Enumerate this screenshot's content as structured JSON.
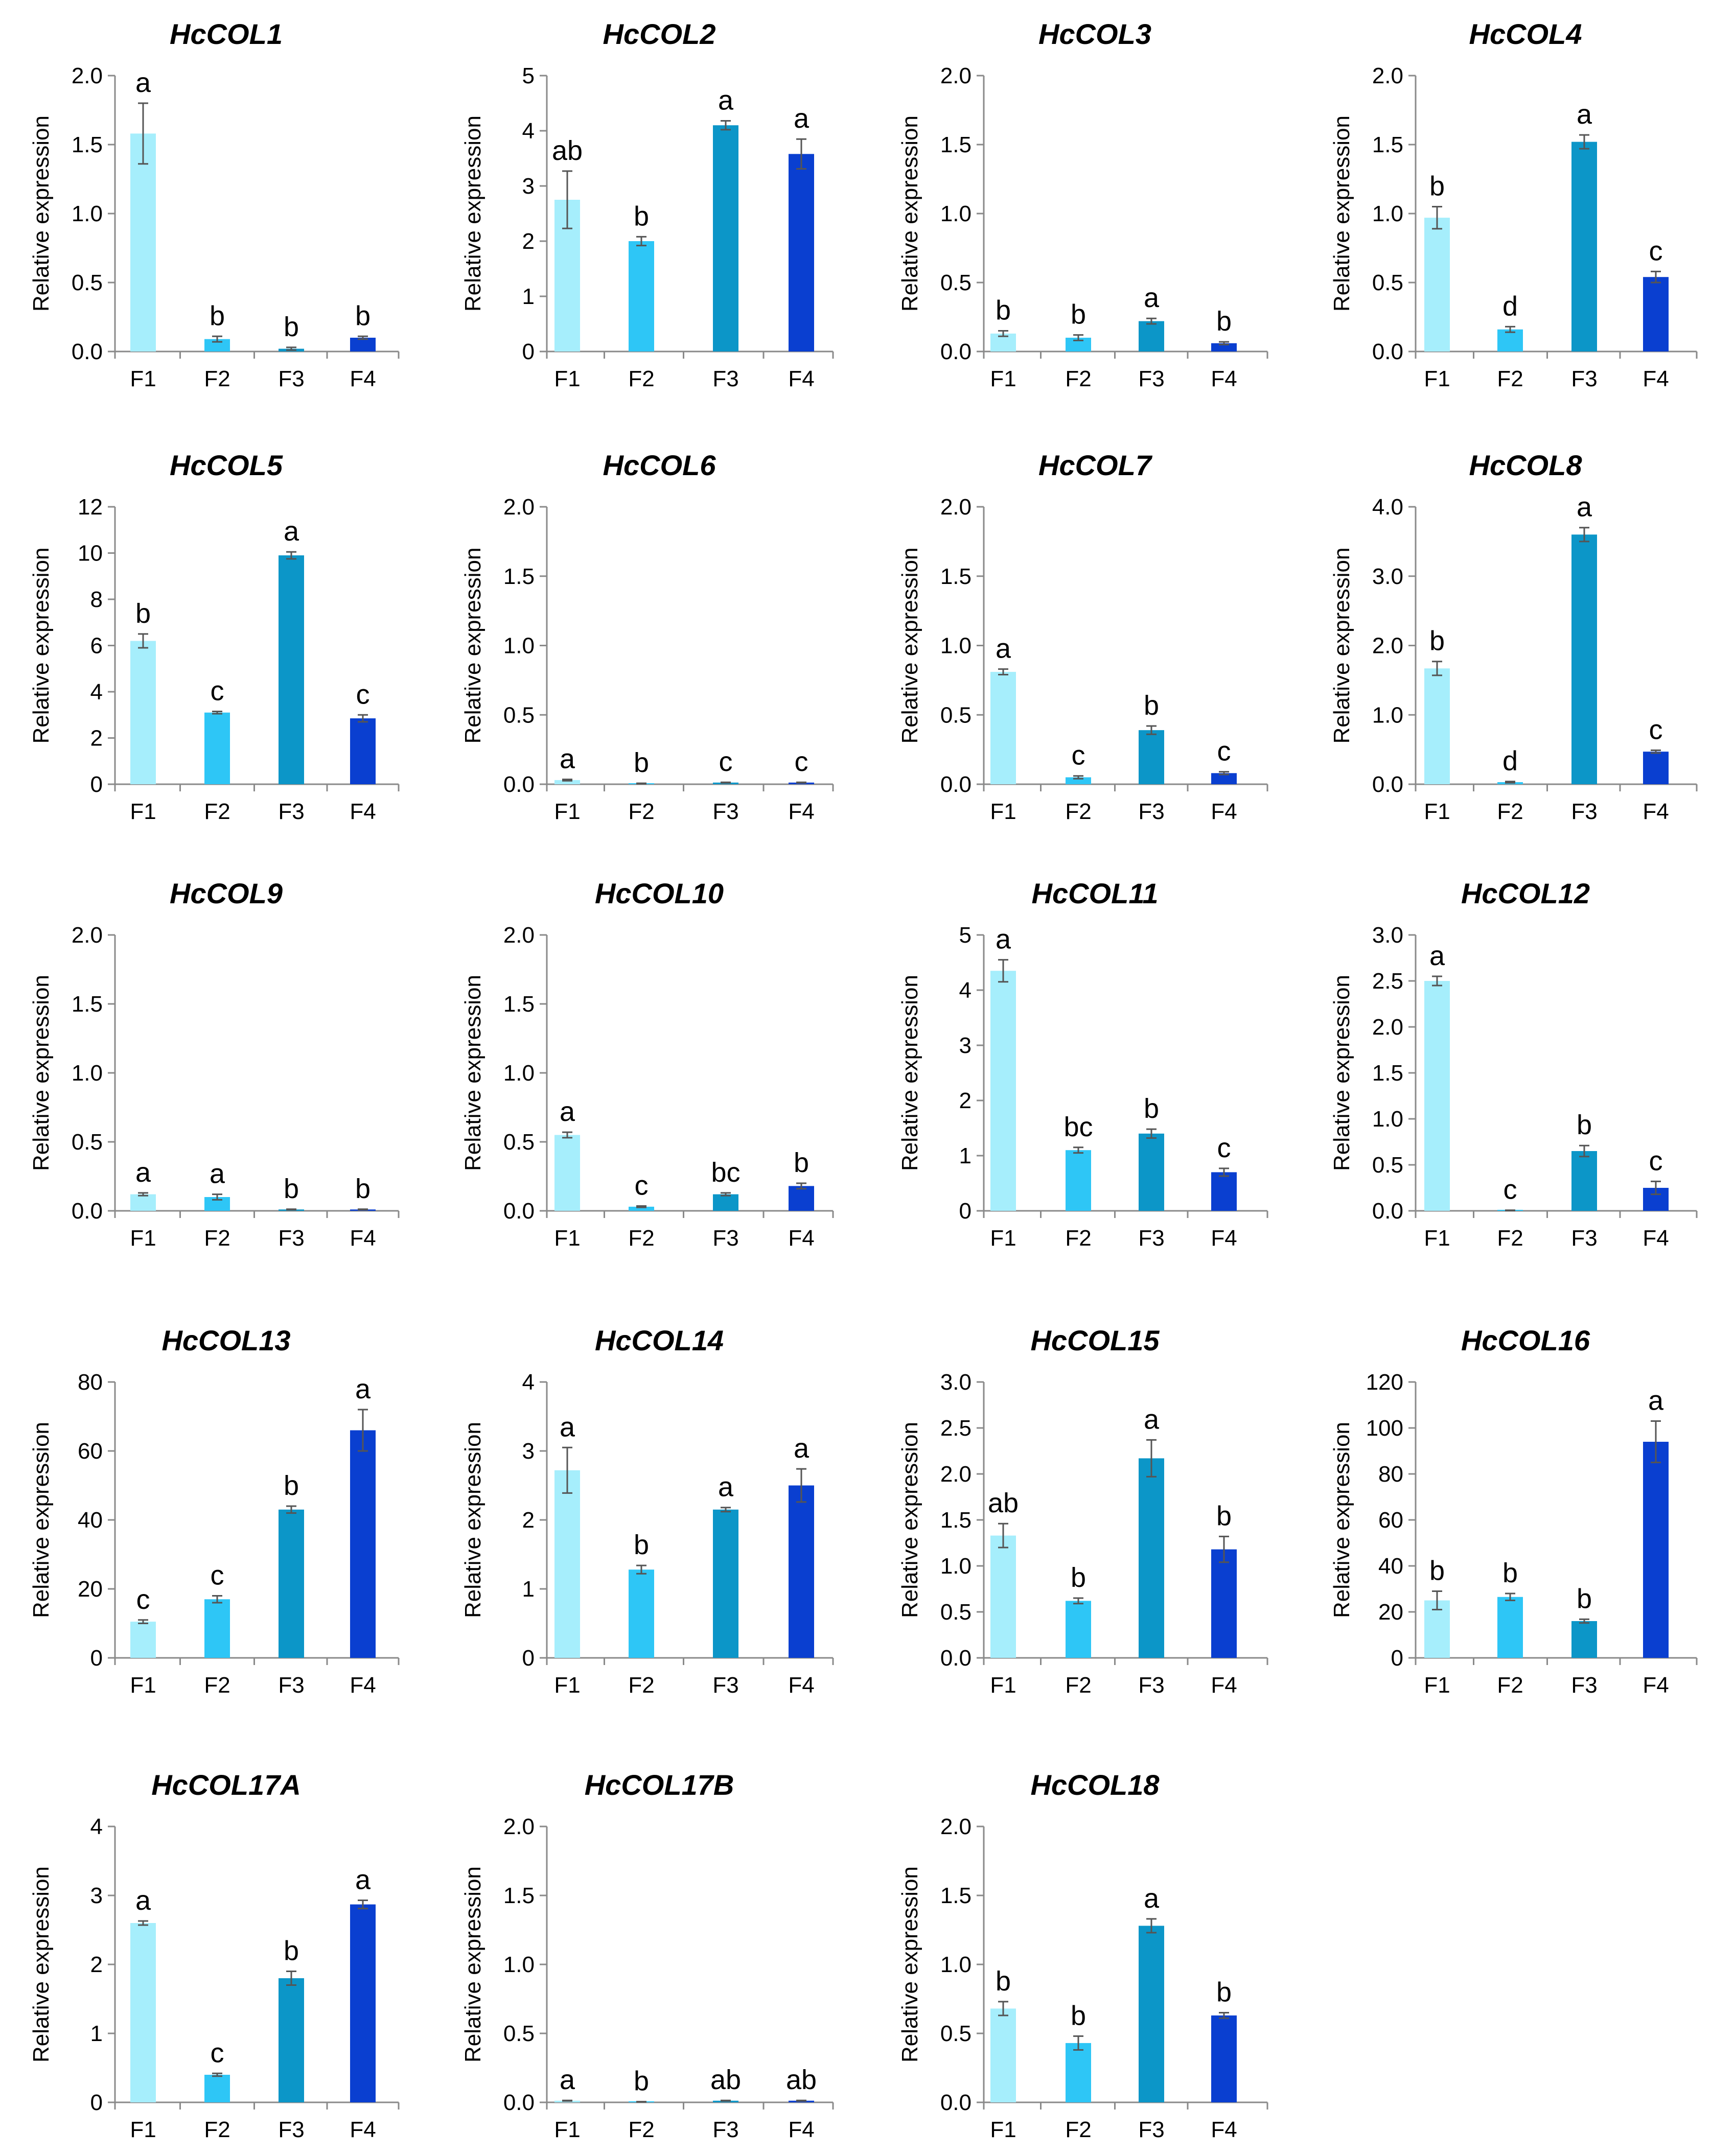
{
  "figure": {
    "categories": [
      "F1",
      "F2",
      "F3",
      "F4"
    ],
    "ylabel": "Relative expression",
    "bar_colors": [
      "#a6eefc",
      "#2ec6f6",
      "#0c96c8",
      "#0a3fd0"
    ]
  },
  "chart_data": [
    {
      "type": "bar",
      "title": "HcCOL1",
      "categories": [
        "F1",
        "F2",
        "F3",
        "F4"
      ],
      "values": [
        1.58,
        0.09,
        0.02,
        0.1
      ],
      "errors": [
        0.22,
        0.02,
        0.01,
        0.01
      ],
      "letters": [
        "a",
        "b",
        "b",
        "b"
      ],
      "ylabel": "Relative expression",
      "ylim": [
        0,
        2.0
      ],
      "yticks": [
        0,
        0.5,
        1.0,
        1.5,
        2.0
      ],
      "tick_labels": [
        "0.0",
        "0.5",
        "1.0",
        "1.5",
        "2.0"
      ]
    },
    {
      "type": "bar",
      "title": "HcCOL2",
      "categories": [
        "F1",
        "F2",
        "F3",
        "F4"
      ],
      "values": [
        2.75,
        2.0,
        4.1,
        3.58
      ],
      "errors": [
        0.52,
        0.08,
        0.08,
        0.27
      ],
      "letters": [
        "ab",
        "b",
        "a",
        "a"
      ],
      "ylabel": "Relative expression",
      "ylim": [
        0,
        5
      ],
      "yticks": [
        0,
        1,
        2,
        3,
        4,
        5
      ],
      "tick_labels": [
        "0",
        "1",
        "2",
        "3",
        "4",
        "5"
      ]
    },
    {
      "type": "bar",
      "title": "HcCOL3",
      "categories": [
        "F1",
        "F2",
        "F3",
        "F4"
      ],
      "values": [
        0.13,
        0.1,
        0.22,
        0.06
      ],
      "errors": [
        0.02,
        0.02,
        0.02,
        0.01
      ],
      "letters": [
        "b",
        "b",
        "a",
        "b"
      ],
      "ylabel": "Relative expression",
      "ylim": [
        0,
        2.0
      ],
      "yticks": [
        0,
        0.5,
        1.0,
        1.5,
        2.0
      ],
      "tick_labels": [
        "0.0",
        "0.5",
        "1.0",
        "1.5",
        "2.0"
      ]
    },
    {
      "type": "bar",
      "title": "HcCOL4",
      "categories": [
        "F1",
        "F2",
        "F3",
        "F4"
      ],
      "values": [
        0.97,
        0.16,
        1.52,
        0.54
      ],
      "errors": [
        0.08,
        0.02,
        0.05,
        0.04
      ],
      "letters": [
        "b",
        "d",
        "a",
        "c"
      ],
      "ylabel": "Relative expression",
      "ylim": [
        0,
        2.0
      ],
      "yticks": [
        0,
        0.5,
        1.0,
        1.5,
        2.0
      ],
      "tick_labels": [
        "0.0",
        "0.5",
        "1.0",
        "1.5",
        "2.0"
      ]
    },
    {
      "type": "bar",
      "title": "HcCOL5",
      "categories": [
        "F1",
        "F2",
        "F3",
        "F4"
      ],
      "values": [
        6.2,
        3.1,
        9.9,
        2.85
      ],
      "errors": [
        0.3,
        0.05,
        0.15,
        0.15
      ],
      "letters": [
        "b",
        "c",
        "a",
        "c"
      ],
      "ylabel": "Relative expression",
      "ylim": [
        0,
        12
      ],
      "yticks": [
        0,
        2,
        4,
        6,
        8,
        10,
        12
      ],
      "tick_labels": [
        "0",
        "2",
        "4",
        "6",
        "8",
        "10",
        "12"
      ]
    },
    {
      "type": "bar",
      "title": "HcCOL6",
      "categories": [
        "F1",
        "F2",
        "F3",
        "F4"
      ],
      "values": [
        0.03,
        0.005,
        0.012,
        0.012
      ],
      "errors": [
        0.005,
        0.002,
        0.002,
        0.002
      ],
      "letters": [
        "a",
        "b",
        "c",
        "c"
      ],
      "ylabel": "Relative expression",
      "ylim": [
        0,
        2.0
      ],
      "yticks": [
        0,
        0.5,
        1.0,
        1.5,
        2.0
      ],
      "tick_labels": [
        "0.0",
        "0.5",
        "1.0",
        "1.5",
        "2.0"
      ]
    },
    {
      "type": "bar",
      "title": "HcCOL7",
      "categories": [
        "F1",
        "F2",
        "F3",
        "F4"
      ],
      "values": [
        0.81,
        0.05,
        0.39,
        0.08
      ],
      "errors": [
        0.02,
        0.01,
        0.03,
        0.01
      ],
      "letters": [
        "a",
        "c",
        "b",
        "c"
      ],
      "ylabel": "Relative expression",
      "ylim": [
        0,
        2.0
      ],
      "yticks": [
        0,
        0.5,
        1.0,
        1.5,
        2.0
      ],
      "tick_labels": [
        "0.0",
        "0.5",
        "1.0",
        "1.5",
        "2.0"
      ]
    },
    {
      "type": "bar",
      "title": "HcCOL8",
      "categories": [
        "F1",
        "F2",
        "F3",
        "F4"
      ],
      "values": [
        1.67,
        0.03,
        3.6,
        0.47
      ],
      "errors": [
        0.1,
        0.01,
        0.1,
        0.02
      ],
      "letters": [
        "b",
        "d",
        "a",
        "c"
      ],
      "ylabel": "Relative expression",
      "ylim": [
        0,
        4.0
      ],
      "yticks": [
        0,
        1.0,
        2.0,
        3.0,
        4.0
      ],
      "tick_labels": [
        "0.0",
        "1.0",
        "2.0",
        "3.0",
        "4.0"
      ]
    },
    {
      "type": "bar",
      "title": "HcCOL9",
      "categories": [
        "F1",
        "F2",
        "F3",
        "F4"
      ],
      "values": [
        0.12,
        0.1,
        0.01,
        0.01
      ],
      "errors": [
        0.01,
        0.02,
        0.002,
        0.002
      ],
      "letters": [
        "a",
        "a",
        "b",
        "b"
      ],
      "ylabel": "Relative expression",
      "ylim": [
        0,
        2.0
      ],
      "yticks": [
        0,
        0.5,
        1.0,
        1.5,
        2.0
      ],
      "tick_labels": [
        "0.0",
        "0.5",
        "1.0",
        "1.5",
        "2.0"
      ]
    },
    {
      "type": "bar",
      "title": "HcCOL10",
      "categories": [
        "F1",
        "F2",
        "F3",
        "F4"
      ],
      "values": [
        0.55,
        0.03,
        0.12,
        0.18
      ],
      "errors": [
        0.02,
        0.005,
        0.01,
        0.02
      ],
      "letters": [
        "a",
        "c",
        "bc",
        "b"
      ],
      "ylabel": "Relative expression",
      "ylim": [
        0,
        2.0
      ],
      "yticks": [
        0,
        0.5,
        1.0,
        1.5,
        2.0
      ],
      "tick_labels": [
        "0.0",
        "0.5",
        "1.0",
        "1.5",
        "2.0"
      ]
    },
    {
      "type": "bar",
      "title": "HcCOL11",
      "categories": [
        "F1",
        "F2",
        "F3",
        "F4"
      ],
      "values": [
        4.35,
        1.1,
        1.4,
        0.7
      ],
      "errors": [
        0.2,
        0.05,
        0.08,
        0.07
      ],
      "letters": [
        "a",
        "bc",
        "b",
        "c"
      ],
      "ylabel": "Relative expression",
      "ylim": [
        0,
        5
      ],
      "yticks": [
        0,
        1,
        2,
        3,
        4,
        5
      ],
      "tick_labels": [
        "0",
        "1",
        "2",
        "3",
        "4",
        "5"
      ]
    },
    {
      "type": "bar",
      "title": "HcCOL12",
      "categories": [
        "F1",
        "F2",
        "F3",
        "F4"
      ],
      "values": [
        2.5,
        0.005,
        0.65,
        0.25
      ],
      "errors": [
        0.05,
        0.002,
        0.06,
        0.07
      ],
      "letters": [
        "a",
        "c",
        "b",
        "c"
      ],
      "ylabel": "Relative expression",
      "ylim": [
        0,
        3.0
      ],
      "yticks": [
        0,
        0.5,
        1.0,
        1.5,
        2.0,
        2.5,
        3.0
      ],
      "tick_labels": [
        "0.0",
        "0.5",
        "1.0",
        "1.5",
        "2.0",
        "2.5",
        "3.0"
      ]
    },
    {
      "type": "bar",
      "title": "HcCOL13",
      "categories": [
        "F1",
        "F2",
        "F3",
        "F4"
      ],
      "values": [
        10.5,
        17,
        43,
        66
      ],
      "errors": [
        0.5,
        1,
        1,
        6
      ],
      "letters": [
        "c",
        "c",
        "b",
        "a"
      ],
      "ylabel": "Relative expression",
      "ylim": [
        0,
        80
      ],
      "yticks": [
        0,
        20,
        40,
        60,
        80
      ],
      "tick_labels": [
        "0",
        "20",
        "40",
        "60",
        "80"
      ]
    },
    {
      "type": "bar",
      "title": "HcCOL14",
      "categories": [
        "F1",
        "F2",
        "F3",
        "F4"
      ],
      "values": [
        2.72,
        1.28,
        2.15,
        2.5
      ],
      "errors": [
        0.33,
        0.06,
        0.03,
        0.24
      ],
      "letters": [
        "a",
        "b",
        "a",
        "a"
      ],
      "ylabel": "Relative expression",
      "ylim": [
        0,
        4
      ],
      "yticks": [
        0,
        1,
        2,
        3,
        4
      ],
      "tick_labels": [
        "0",
        "1",
        "2",
        "3",
        "4"
      ]
    },
    {
      "type": "bar",
      "title": "HcCOL15",
      "categories": [
        "F1",
        "F2",
        "F3",
        "F4"
      ],
      "values": [
        1.33,
        0.62,
        2.17,
        1.18
      ],
      "errors": [
        0.13,
        0.03,
        0.2,
        0.14
      ],
      "letters": [
        "ab",
        "b",
        "a",
        "b"
      ],
      "ylabel": "Relative expression",
      "ylim": [
        0,
        3.0
      ],
      "yticks": [
        0,
        0.5,
        1.0,
        1.5,
        2.0,
        2.5,
        3.0
      ],
      "tick_labels": [
        "0.0",
        "0.5",
        "1.0",
        "1.5",
        "2.0",
        "2.5",
        "3.0"
      ]
    },
    {
      "type": "bar",
      "title": "HcCOL16",
      "categories": [
        "F1",
        "F2",
        "F3",
        "F4"
      ],
      "values": [
        25,
        26.5,
        16,
        94
      ],
      "errors": [
        4,
        1.5,
        0.8,
        9
      ],
      "letters": [
        "b",
        "b",
        "b",
        "a"
      ],
      "ylabel": "Relative expression",
      "ylim": [
        0,
        120
      ],
      "yticks": [
        0,
        20,
        40,
        60,
        80,
        100,
        120
      ],
      "tick_labels": [
        "0",
        "20",
        "40",
        "60",
        "80",
        "100",
        "120"
      ]
    },
    {
      "type": "bar",
      "title": "HcCOL17A",
      "categories": [
        "F1",
        "F2",
        "F3",
        "F4"
      ],
      "values": [
        2.6,
        0.4,
        1.8,
        2.87
      ],
      "errors": [
        0.03,
        0.02,
        0.1,
        0.06
      ],
      "letters": [
        "a",
        "c",
        "b",
        "a"
      ],
      "ylabel": "Relative expression",
      "ylim": [
        0,
        4
      ],
      "yticks": [
        0,
        1,
        2,
        3,
        4
      ],
      "tick_labels": [
        "0",
        "1",
        "2",
        "3",
        "4"
      ]
    },
    {
      "type": "bar",
      "title": "HcCOL17B",
      "categories": [
        "F1",
        "F2",
        "F3",
        "F4"
      ],
      "values": [
        0.012,
        0.004,
        0.012,
        0.012
      ],
      "errors": [
        0.002,
        0.001,
        0.002,
        0.002
      ],
      "letters": [
        "a",
        "b",
        "ab",
        "ab"
      ],
      "ylabel": "Relative expression",
      "ylim": [
        0,
        2.0
      ],
      "yticks": [
        0,
        0.5,
        1.0,
        1.5,
        2.0
      ],
      "tick_labels": [
        "0.0",
        "0.5",
        "1.0",
        "1.5",
        "2.0"
      ]
    },
    {
      "type": "bar",
      "title": "HcCOL18",
      "categories": [
        "F1",
        "F2",
        "F3",
        "F4"
      ],
      "values": [
        0.68,
        0.43,
        1.28,
        0.63
      ],
      "errors": [
        0.05,
        0.05,
        0.05,
        0.02
      ],
      "letters": [
        "b",
        "b",
        "a",
        "b"
      ],
      "ylabel": "Relative expression",
      "ylim": [
        0,
        2.0
      ],
      "yticks": [
        0,
        0.5,
        1.0,
        1.5,
        2.0
      ],
      "tick_labels": [
        "0.0",
        "0.5",
        "1.0",
        "1.5",
        "2.0"
      ]
    }
  ]
}
